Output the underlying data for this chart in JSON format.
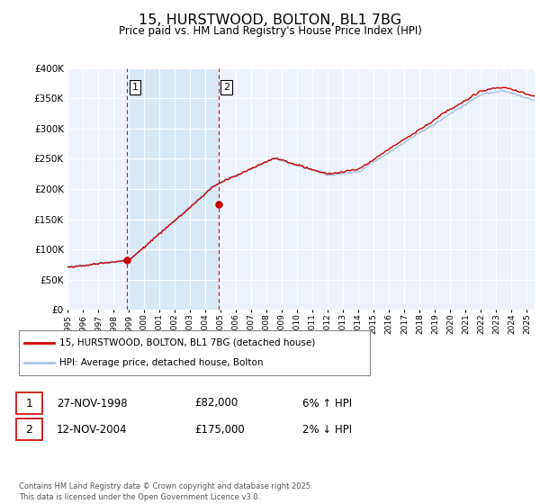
{
  "title": "15, HURSTWOOD, BOLTON, BL1 7BG",
  "subtitle": "Price paid vs. HM Land Registry's House Price Index (HPI)",
  "legend_line1": "15, HURSTWOOD, BOLTON, BL1 7BG (detached house)",
  "legend_line2": "HPI: Average price, detached house, Bolton",
  "annotation1_label": "1",
  "annotation1_date": "27-NOV-1998",
  "annotation1_price": "£82,000",
  "annotation1_hpi": "6% ↑ HPI",
  "annotation2_label": "2",
  "annotation2_date": "12-NOV-2004",
  "annotation2_price": "£175,000",
  "annotation2_hpi": "2% ↓ HPI",
  "footnote": "Contains HM Land Registry data © Crown copyright and database right 2025.\nThis data is licensed under the Open Government Licence v3.0.",
  "hpi_color": "#aac4e0",
  "price_color": "#cc0000",
  "background_color": "#ffffff",
  "plot_bg_color": "#eef2fa",
  "shade_color": "#d8e8f5",
  "grid_color": "#ffffff",
  "ylim": [
    0,
    400000
  ],
  "yticks": [
    0,
    50000,
    100000,
    150000,
    200000,
    250000,
    300000,
    350000,
    400000
  ],
  "sale1_x": 1998.9,
  "sale1_y": 82000,
  "sale2_x": 2004.87,
  "sale2_y": 175000,
  "xmin": 1995,
  "xmax": 2025.5
}
